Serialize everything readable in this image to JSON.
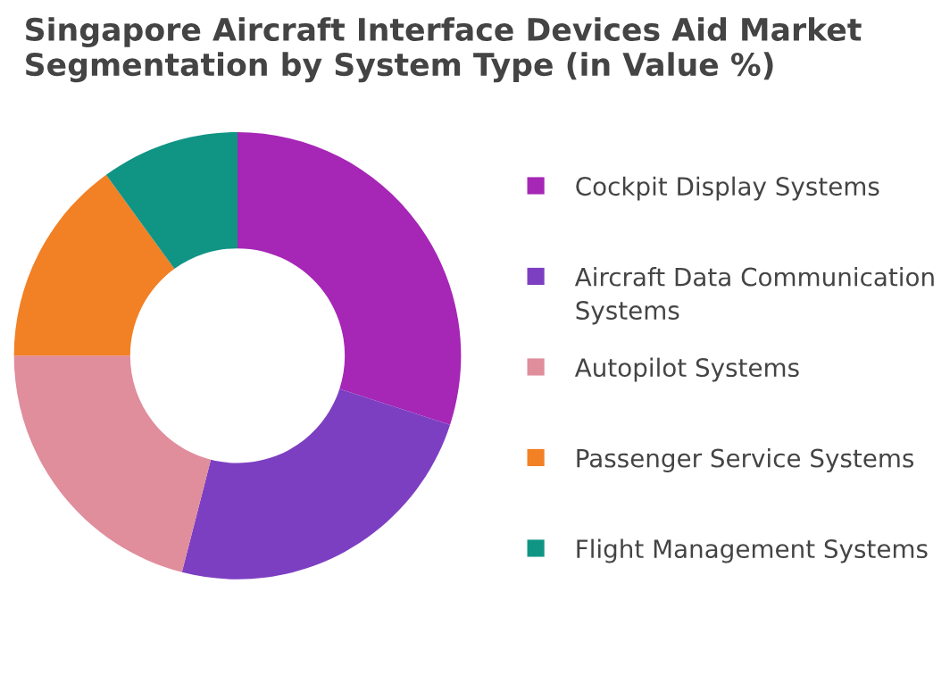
{
  "chart_data": {
    "type": "donut",
    "title": "Singapore Aircraft Interface Devices Aid Market Segmentation by System Type (in Value %)",
    "categories": [
      "Cockpit Display Systems",
      "Aircraft Data Communication Systems",
      "Autopilot Systems",
      "Passenger Service Systems",
      "Flight Management Systems"
    ],
    "values": [
      30,
      24,
      21,
      15,
      10
    ],
    "colors": [
      "#a626b6",
      "#7d3fc2",
      "#e08d9c",
      "#f28024",
      "#109484"
    ],
    "legend": "right"
  }
}
